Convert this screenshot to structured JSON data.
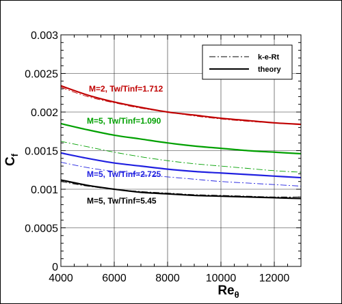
{
  "chart_data": {
    "type": "line",
    "xlabel": "Re",
    "xlabel_sub": "θ",
    "ylabel": "C",
    "ylabel_sub": "f",
    "xlim": [
      4000,
      13000
    ],
    "ylim": [
      0,
      0.003
    ],
    "xticks": [
      4000,
      6000,
      8000,
      10000,
      12000
    ],
    "xtick_labels": [
      "4000",
      "6000",
      "8000",
      "10000",
      "12000"
    ],
    "yticks": [
      0,
      0.0005,
      0.001,
      0.0015,
      0.002,
      0.0025,
      0.003
    ],
    "ytick_labels": [
      "0",
      "0.0005",
      "0.001",
      "0.0015",
      "0.002",
      "0.0025",
      "0.003"
    ],
    "grid": true,
    "legend": {
      "placement": "top-right",
      "entries": [
        {
          "label": "k-e-Rt",
          "style": "dash-dot"
        },
        {
          "label": "theory",
          "style": "solid"
        }
      ]
    },
    "annotations": [
      {
        "text": "M=2, Tw/Tinf=1.712",
        "color": "#c00000"
      },
      {
        "text": "M=5, Tw/Tinf=1.090",
        "color": "#00a000"
      },
      {
        "text": "M=5, Tw/Tinf=2.725",
        "color": "#2020e0"
      },
      {
        "text": "M=5, Tw/Tinf=5.45",
        "color": "#000000"
      }
    ],
    "series": [
      {
        "color": "#c00000",
        "style": "solid",
        "x": [
          4000,
          5000,
          6000,
          7000,
          8000,
          9000,
          10000,
          11000,
          12000,
          13000
        ],
        "y": [
          0.00234,
          0.00222,
          0.00213,
          0.00206,
          0.002,
          0.00196,
          0.00192,
          0.00189,
          0.00186,
          0.00184
        ]
      },
      {
        "color": "#c00000",
        "style": "dash-dot",
        "x": [
          4000,
          5000,
          6000,
          7000,
          8000,
          9000,
          10000,
          11000,
          12000,
          13000
        ],
        "y": [
          0.00232,
          0.0022,
          0.00212,
          0.00205,
          0.002,
          0.00195,
          0.00191,
          0.00188,
          0.00186,
          0.00184
        ]
      },
      {
        "color": "#00a000",
        "style": "solid",
        "x": [
          4000,
          5000,
          6000,
          7000,
          8000,
          9000,
          10000,
          11000,
          12000,
          13000
        ],
        "y": [
          0.00185,
          0.00177,
          0.0017,
          0.00165,
          0.0016,
          0.00156,
          0.00153,
          0.0015,
          0.00148,
          0.00146
        ]
      },
      {
        "color": "#00a000",
        "style": "dash-dot",
        "x": [
          4000,
          5000,
          6000,
          7000,
          8000,
          9000,
          10000,
          11000,
          12000,
          13000
        ],
        "y": [
          0.00162,
          0.00155,
          0.00148,
          0.00142,
          0.00137,
          0.00133,
          0.0013,
          0.00127,
          0.00124,
          0.00122
        ]
      },
      {
        "color": "#2020e0",
        "style": "solid",
        "x": [
          4000,
          5000,
          6000,
          7000,
          8000,
          9000,
          10000,
          11000,
          12000,
          13000
        ],
        "y": [
          0.00147,
          0.0014,
          0.00134,
          0.0013,
          0.00126,
          0.00123,
          0.00121,
          0.00119,
          0.00117,
          0.00115
        ]
      },
      {
        "color": "#2020e0",
        "style": "dash-dot",
        "x": [
          4000,
          5000,
          6000,
          7000,
          8000,
          9000,
          10000,
          11000,
          12000,
          13000
        ],
        "y": [
          0.00135,
          0.00128,
          0.00123,
          0.00119,
          0.00116,
          0.00113,
          0.0011,
          0.00108,
          0.00106,
          0.00104
        ]
      },
      {
        "color": "#000000",
        "style": "solid",
        "x": [
          4000,
          5000,
          6000,
          7000,
          8000,
          9000,
          10000,
          11000,
          12000,
          13000
        ],
        "y": [
          0.00112,
          0.00105,
          0.001,
          0.00096,
          0.00094,
          0.00092,
          0.00091,
          0.0009,
          0.00089,
          0.00088
        ]
      },
      {
        "color": "#000000",
        "style": "dash-dot",
        "x": [
          4000,
          5000,
          6000,
          7000,
          8000,
          9000,
          10000,
          11000,
          12000,
          13000
        ],
        "y": [
          0.0011,
          0.00104,
          0.001,
          0.00097,
          0.00095,
          0.00093,
          0.00092,
          0.00091,
          0.0009,
          0.0009
        ]
      }
    ]
  }
}
